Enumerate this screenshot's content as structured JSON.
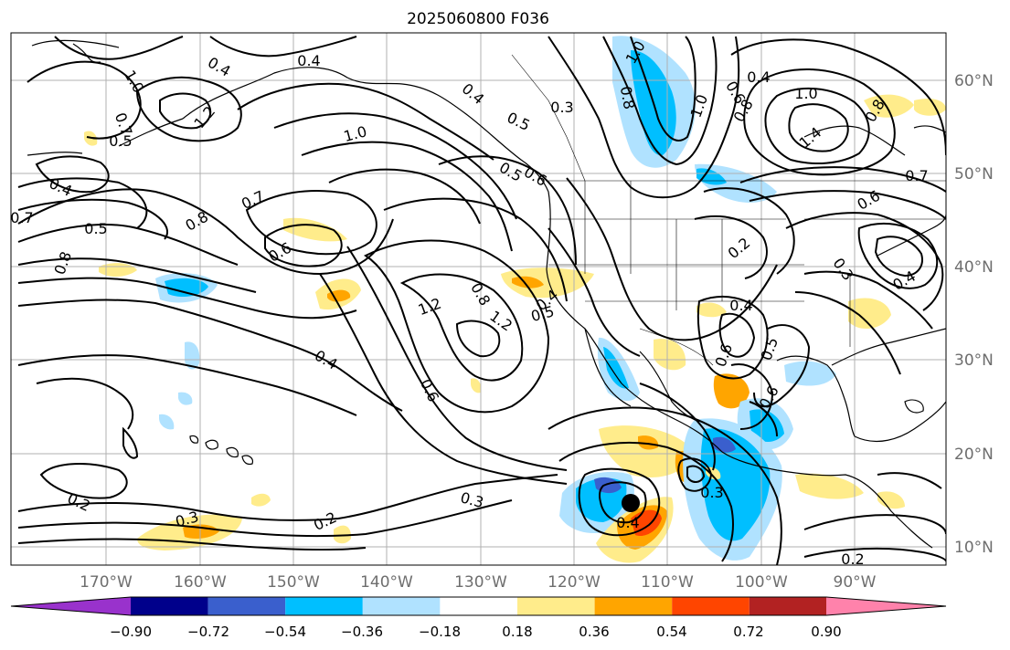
{
  "title": "2025060800 F036",
  "map": {
    "lon_range": [
      -180,
      -80
    ],
    "lat_range": [
      8,
      65
    ],
    "lon_ticks": [
      "170°W",
      "160°W",
      "150°W",
      "140°W",
      "130°W",
      "120°W",
      "110°W",
      "100°W",
      "90°W"
    ],
    "lat_ticks": [
      "60°N",
      "50°N",
      "40°N",
      "30°N",
      "20°N",
      "10°N"
    ],
    "grid": true
  },
  "contour_labels": [
    "0.4",
    "0.4",
    "1.0",
    "1.0",
    "1.2",
    "0.7",
    "0.5",
    "0.4",
    "0.7",
    "0.5",
    "0.8",
    "0.8",
    "0.6",
    "0.3",
    "0.4",
    "0.5",
    "1.0",
    "0.5",
    "0.8",
    "1.0",
    "0.6",
    "0.8",
    "0.4",
    "1.0",
    "1.4",
    "0.8",
    "0.7",
    "0.6",
    "0.2",
    "0.3",
    "0.4",
    "0.7",
    "0.6",
    "1.2",
    "0.8",
    "1.2",
    "0.5",
    "0.4",
    "0.4",
    "0.6",
    "0.4",
    "0.6",
    "0.5",
    "0.6",
    "0.3",
    "0.2",
    "0.3",
    "0.2",
    "0.3",
    "0.4",
    "0.2"
  ],
  "colorbar": {
    "ticks": [
      "−0.90",
      "−0.72",
      "−0.54",
      "−0.36",
      "−0.18",
      "0.18",
      "0.36",
      "0.54",
      "0.72",
      "0.90"
    ],
    "colors": [
      "#9932cc",
      "#00008b",
      "#3a5fcd",
      "#00bfff",
      "#b0e2ff",
      "#ffffff",
      "#ffec8b",
      "#ffa500",
      "#ff4500",
      "#b22222",
      "#ff82ab"
    ]
  },
  "storm_marker": "tropical-storm-center"
}
